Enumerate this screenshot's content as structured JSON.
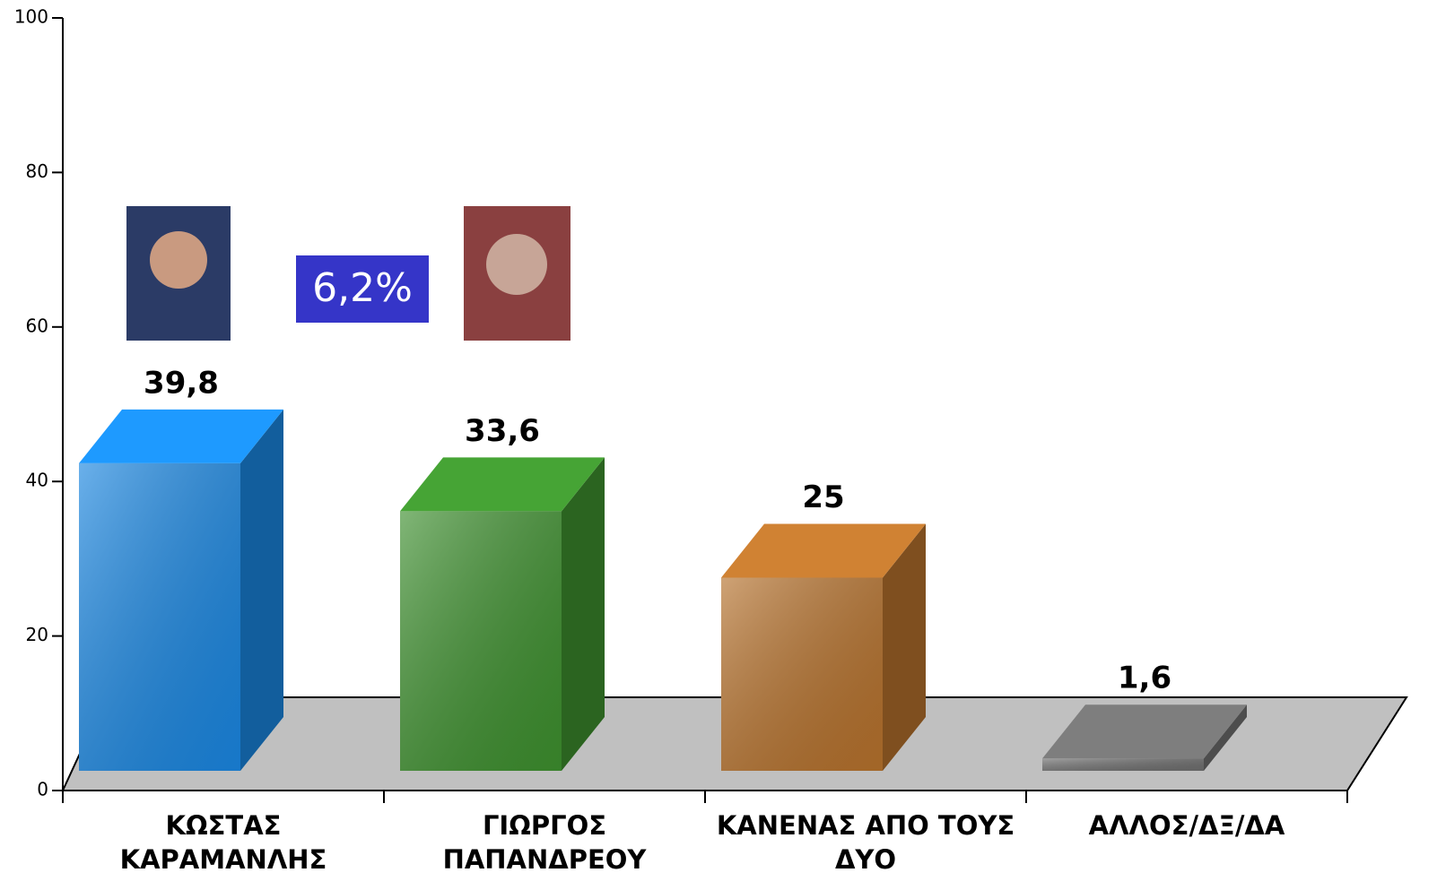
{
  "chart_data": {
    "type": "bar3d",
    "categories": [
      "ΚΩΣΤΑΣ ΚΑΡΑΜΑΝΛΗΣ",
      "ΓΙΩΡΓΟΣ ΠΑΠΑΝΔΡΕΟΥ",
      "ΚΑΝΕΝΑΣ ΑΠΟ ΤΟΥΣ ΔΥΟ",
      "ΑΛΛΟΣ/ΔΞ/ΔΑ"
    ],
    "values": [
      39.8,
      33.6,
      25,
      1.6
    ],
    "value_labels": [
      "39,8",
      "33,6",
      "25",
      "1,6"
    ],
    "colors": [
      "#1a86e0",
      "#3d8f2e",
      "#b5712c",
      "#6e6e6e"
    ],
    "annotation": "6,2%",
    "ylim": [
      0,
      100
    ],
    "yticks": [
      0,
      20,
      40,
      60,
      80,
      100
    ]
  }
}
